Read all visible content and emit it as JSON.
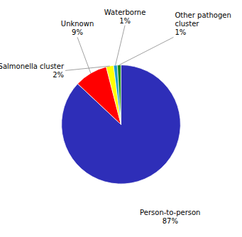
{
  "chart_data": {
    "type": "pie",
    "categories": [
      "Person-to-person",
      "Unknown",
      "Salmonella cluster",
      "Waterborne",
      "Other pathogen\ncluster"
    ],
    "values": [
      87,
      9,
      2,
      1,
      1
    ],
    "value_labels": [
      "87%",
      "9%",
      "2%",
      "1%",
      "1%"
    ],
    "colors": [
      "#2e2eb8",
      "#ff0000",
      "#ffff00",
      "#1a9dcc",
      "#228B22"
    ],
    "data_labels": true
  }
}
